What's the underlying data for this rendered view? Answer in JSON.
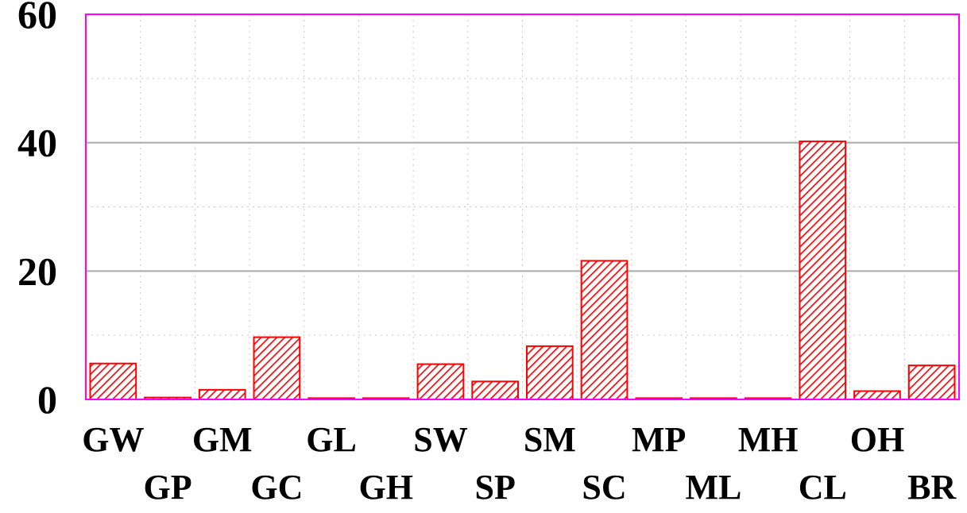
{
  "chart_data": {
    "type": "bar",
    "title": "",
    "xlabel": "",
    "ylabel": "",
    "categories": [
      "GW",
      "GP",
      "GM",
      "GC",
      "GL",
      "GH",
      "SW",
      "SP",
      "SM",
      "SC",
      "MP",
      "ML",
      "MH",
      "CL",
      "OH",
      "BR"
    ],
    "values": [
      5.6,
      0.3,
      1.5,
      9.7,
      0.2,
      0.2,
      5.5,
      2.8,
      8.3,
      21.6,
      0.2,
      0.2,
      0.2,
      40.2,
      1.3,
      5.3
    ],
    "ylim": [
      0,
      60
    ],
    "yticks": [
      "0",
      "20",
      "40",
      "60"
    ],
    "grid": true,
    "legend": "none",
    "bar_fill": "#ff0000",
    "bar_hatch": "diagonal",
    "plot_border_color": "#ff00ff",
    "gridline_color": "#aaaaaa"
  }
}
